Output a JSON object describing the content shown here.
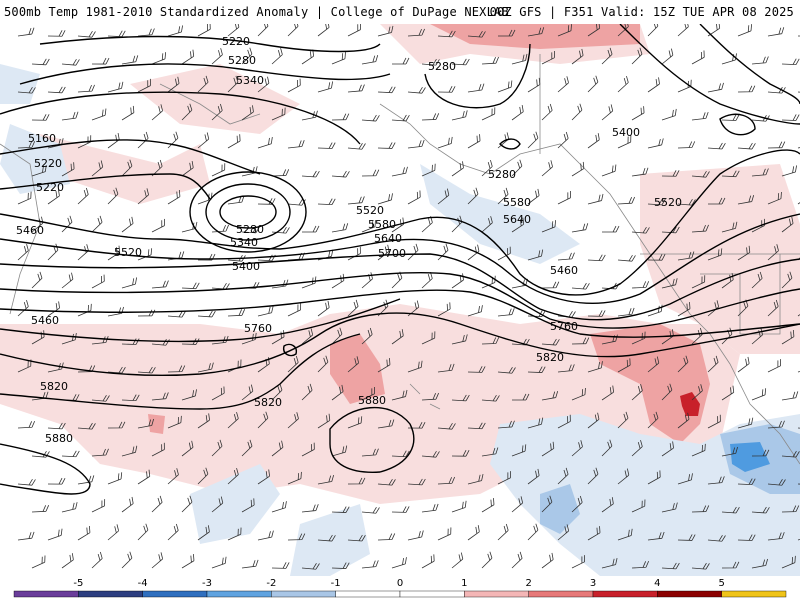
{
  "header": {
    "left_title": "500mb Temp 1981-2010 Standardized Anomaly | College of DuPage NEXLAB",
    "right_title": "00Z GFS | F351 Valid: 15Z TUE APR 08 2025"
  },
  "map": {
    "contour_labels": [
      "5220",
      "5280",
      "5340",
      "5280",
      "5160",
      "5220",
      "5220",
      "5280",
      "5340",
      "5400",
      "5520",
      "5580",
      "5640",
      "5700",
      "5460",
      "5520",
      "5280",
      "5400",
      "5460",
      "5520",
      "5580",
      "5640",
      "5760",
      "5760",
      "5820",
      "5820",
      "5880",
      "5820",
      "5880",
      "5460"
    ],
    "colors": {
      "positive_anomaly_light": "#f5d3d3",
      "positive_anomaly_mid": "#e89a9a",
      "positive_anomaly_strong": "#c8202a",
      "negative_anomaly_light": "#d6e4f2",
      "negative_anomaly_mid": "#a9c6e6",
      "negative_anomaly_strong": "#4f9be0",
      "contour": "#000000",
      "borders": "#7f7f7f"
    }
  },
  "colorbar": {
    "ticks": [
      "-5",
      "-4",
      "-3",
      "-2",
      "-1",
      "0",
      "1",
      "2",
      "3",
      "4",
      "5"
    ],
    "colors": [
      "#6a3d9a",
      "#2c3e80",
      "#2f6fbf",
      "#5fa3e0",
      "#a9c6e6",
      "#ffffff",
      "#ffffff",
      "#f4b6b6",
      "#e77979",
      "#c8202a",
      "#8b0000",
      "#f0c419"
    ]
  }
}
